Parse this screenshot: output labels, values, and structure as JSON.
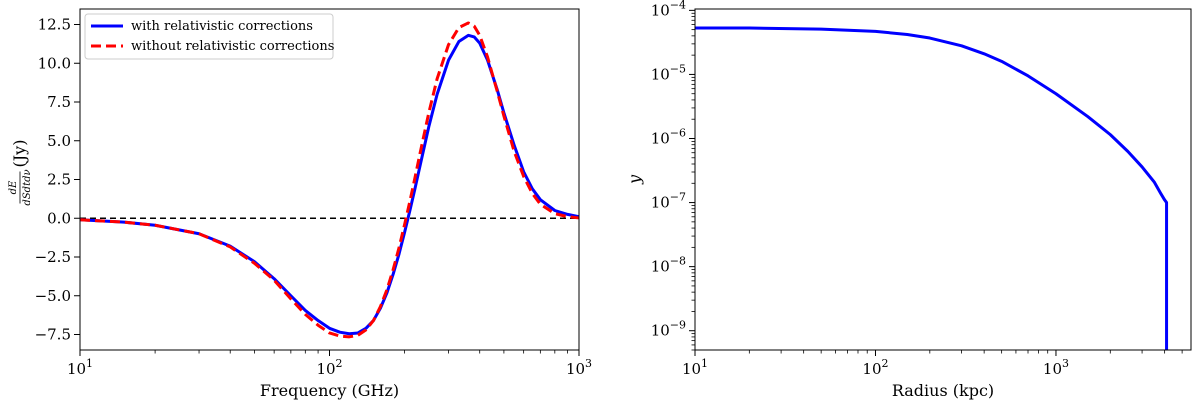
{
  "chart_data": [
    {
      "type": "line",
      "xlabel": "Frequency (GHz)",
      "ylabel": "(Jy)",
      "ylabel_fraction": {
        "numerator": "dE",
        "denominator": "dSdtdν"
      },
      "x_scale": "log",
      "xlim": [
        10,
        1000
      ],
      "ylim": [
        -8.5,
        13.5
      ],
      "x_ticks": [
        {
          "value": 10,
          "base": "10",
          "exp": "1"
        },
        {
          "value": 100,
          "base": "10",
          "exp": "2"
        },
        {
          "value": 1000,
          "base": "10",
          "exp": "3"
        }
      ],
      "y_ticks": [
        {
          "value": -7.5,
          "label": "−7.5"
        },
        {
          "value": -5.0,
          "label": "−5.0"
        },
        {
          "value": -2.5,
          "label": "−2.5"
        },
        {
          "value": 0.0,
          "label": "0.0"
        },
        {
          "value": 2.5,
          "label": "2.5"
        },
        {
          "value": 5.0,
          "label": "5.0"
        },
        {
          "value": 7.5,
          "label": "7.5"
        },
        {
          "value": 10.0,
          "label": "10.0"
        },
        {
          "value": 12.5,
          "label": "12.5"
        }
      ],
      "reference_line": {
        "y": 0,
        "style": "dashed",
        "color": "#000000"
      },
      "legend_position": "top-left",
      "grid": false,
      "series": [
        {
          "name": "with relativistic corrections",
          "color": "#0000ff",
          "style": "solid",
          "x": [
            10,
            15,
            20,
            30,
            40,
            50,
            60,
            70,
            80,
            90,
            100,
            110,
            120,
            130,
            140,
            150,
            160,
            170,
            180,
            190,
            200,
            210,
            220,
            230,
            250,
            270,
            300,
            330,
            360,
            380,
            400,
            430,
            470,
            500,
            550,
            600,
            650,
            700,
            800,
            900,
            1000
          ],
          "y": [
            -0.1,
            -0.25,
            -0.45,
            -1.0,
            -1.8,
            -2.8,
            -3.9,
            -5.0,
            -5.95,
            -6.6,
            -7.1,
            -7.35,
            -7.45,
            -7.4,
            -7.1,
            -6.6,
            -5.8,
            -4.8,
            -3.6,
            -2.3,
            -0.9,
            0.5,
            1.9,
            3.3,
            5.9,
            8.0,
            10.2,
            11.4,
            11.8,
            11.7,
            11.3,
            10.2,
            8.3,
            6.8,
            4.7,
            3.0,
            1.9,
            1.2,
            0.5,
            0.25,
            0.1
          ]
        },
        {
          "name": "without relativistic corrections",
          "color": "#ff0000",
          "style": "dashed",
          "x": [
            10,
            15,
            20,
            30,
            40,
            50,
            60,
            70,
            80,
            90,
            100,
            110,
            120,
            130,
            140,
            150,
            160,
            170,
            180,
            190,
            200,
            210,
            220,
            230,
            250,
            270,
            300,
            330,
            360,
            380,
            400,
            430,
            470,
            500,
            550,
            600,
            650,
            700,
            800,
            900,
            1000
          ],
          "y": [
            -0.1,
            -0.25,
            -0.45,
            -1.0,
            -1.85,
            -2.9,
            -4.0,
            -5.2,
            -6.2,
            -6.9,
            -7.4,
            -7.6,
            -7.65,
            -7.55,
            -7.2,
            -6.6,
            -5.7,
            -4.6,
            -3.3,
            -1.9,
            -0.4,
            1.1,
            2.6,
            4.1,
            6.8,
            9.0,
            11.2,
            12.3,
            12.6,
            12.4,
            11.8,
            10.4,
            8.2,
            6.6,
            4.3,
            2.7,
            1.6,
            0.9,
            0.3,
            0.1,
            0.02
          ]
        }
      ]
    },
    {
      "type": "line",
      "xlabel": "Radius (kpc)",
      "ylabel": "y",
      "x_scale": "log",
      "y_scale": "log",
      "xlim": [
        10,
        5600
      ],
      "ylim": [
        5e-10,
        0.000105
      ],
      "x_ticks": [
        {
          "value": 10,
          "base": "10",
          "exp": "1"
        },
        {
          "value": 100,
          "base": "10",
          "exp": "2"
        },
        {
          "value": 1000,
          "base": "10",
          "exp": "3"
        }
      ],
      "y_ticks": [
        {
          "value": 1e-09,
          "base": "10",
          "exp": "−9"
        },
        {
          "value": 1e-08,
          "base": "10",
          "exp": "−8"
        },
        {
          "value": 1e-07,
          "base": "10",
          "exp": "−7"
        },
        {
          "value": 1e-06,
          "base": "10",
          "exp": "−6"
        },
        {
          "value": 1e-05,
          "base": "10",
          "exp": "−5"
        },
        {
          "value": 0.0001,
          "base": "10",
          "exp": "−4"
        }
      ],
      "grid": false,
      "series": [
        {
          "color": "#0000ff",
          "style": "solid",
          "x": [
            10,
            20,
            50,
            100,
            150,
            200,
            300,
            400,
            500,
            700,
            1000,
            1500,
            2000,
            2500,
            3000,
            3500,
            3800,
            4000,
            4100,
            4100
          ],
          "y": [
            5.3e-05,
            5.3e-05,
            5.1e-05,
            4.7e-05,
            4.2e-05,
            3.7e-05,
            2.8e-05,
            2.1e-05,
            1.6e-05,
            9.5e-06,
            5e-06,
            2.2e-06,
            1.15e-06,
            6.3e-07,
            3.6e-07,
            2.1e-07,
            1.4e-07,
            1.1e-07,
            1e-07,
            5e-10
          ]
        }
      ]
    }
  ]
}
